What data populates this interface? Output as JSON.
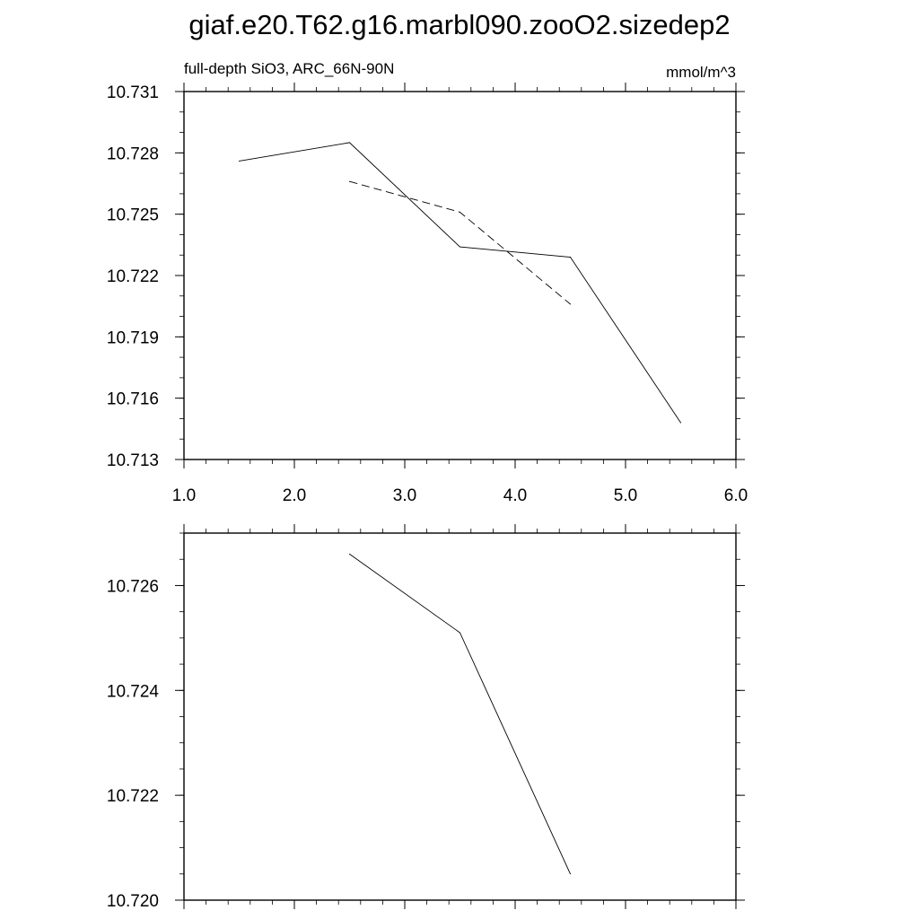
{
  "figure": {
    "title": "giaf.e20.T62.g16.marbl090.zooO2.sizedep2"
  },
  "chart_data": [
    {
      "type": "line",
      "subtitle_left": "full-depth SiO3, ARC_66N-90N",
      "subtitle_right": "mmol/m^3",
      "xlim": [
        1.0,
        6.0
      ],
      "ylim": [
        10.713,
        10.731
      ],
      "x_ticks": [
        1.0,
        2.0,
        3.0,
        4.0,
        5.0,
        6.0
      ],
      "x_tick_labels": [
        "1.0",
        "2.0",
        "3.0",
        "4.0",
        "5.0",
        "6.0"
      ],
      "y_ticks": [
        10.713,
        10.716,
        10.719,
        10.722,
        10.725,
        10.728,
        10.731
      ],
      "y_tick_labels": [
        "10.713",
        "10.716",
        "10.719",
        "10.722",
        "10.725",
        "10.728",
        "10.731"
      ],
      "grid": false,
      "series": [
        {
          "style": "solid",
          "x": [
            1.5,
            2.5,
            3.5,
            4.5,
            5.5
          ],
          "y": [
            10.7276,
            10.7285,
            10.7234,
            10.7229,
            10.7148
          ]
        },
        {
          "style": "dashed",
          "x": [
            2.5,
            3.5,
            4.5
          ],
          "y": [
            10.7266,
            10.7251,
            10.7206
          ]
        }
      ]
    },
    {
      "type": "line",
      "xlim": [
        1.0,
        6.0
      ],
      "ylim": [
        10.72,
        10.727
      ],
      "x_ticks": [
        1.0,
        2.0,
        3.0,
        4.0,
        5.0,
        6.0
      ],
      "y_ticks": [
        10.72,
        10.722,
        10.724,
        10.726
      ],
      "y_tick_labels": [
        "10.720",
        "10.722",
        "10.724",
        "10.726"
      ],
      "grid": false,
      "series": [
        {
          "style": "solid",
          "x": [
            2.5,
            3.5,
            4.5
          ],
          "y": [
            10.7266,
            10.7251,
            10.7205
          ]
        }
      ]
    }
  ]
}
